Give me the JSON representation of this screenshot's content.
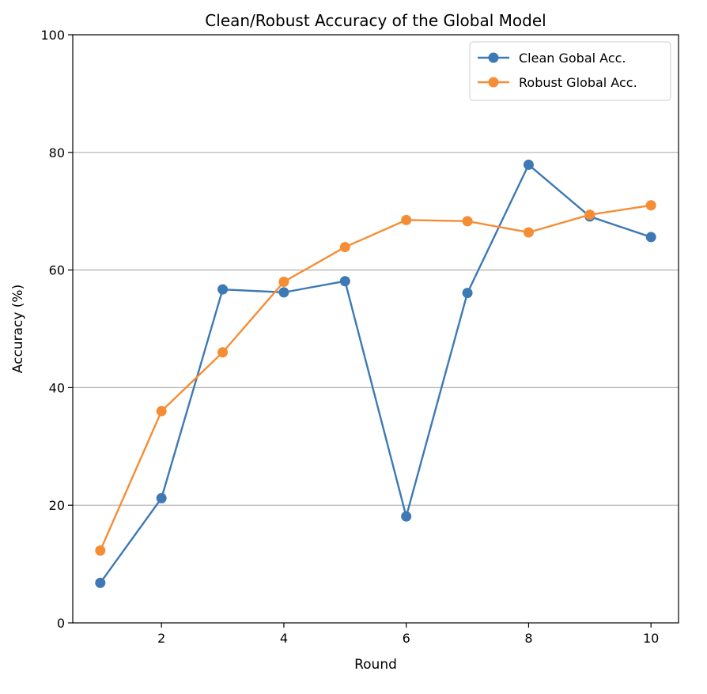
{
  "chart_data": {
    "type": "line",
    "title": "Clean/Robust Accuracy of the Global Model",
    "xlabel": "Round",
    "ylabel": "Accuracy (%)",
    "x": [
      1,
      2,
      3,
      4,
      5,
      6,
      7,
      8,
      9,
      10
    ],
    "xlim": [
      0.55,
      10.45
    ],
    "ylim": [
      0,
      100
    ],
    "xticks": [
      2,
      4,
      6,
      8,
      10
    ],
    "yticks": [
      0,
      20,
      40,
      60,
      80,
      100
    ],
    "grid": "horizontal",
    "legend_position": "top-right",
    "series": [
      {
        "name": "Clean Gobal Acc.",
        "color": "#3d79b5",
        "values": [
          6.8,
          21.2,
          56.7,
          56.2,
          58.1,
          18.1,
          56.1,
          77.9,
          69.1,
          65.6
        ]
      },
      {
        "name": "Robust Global Acc.",
        "color": "#f58d35",
        "values": [
          12.3,
          36.0,
          46.0,
          58.0,
          63.9,
          68.5,
          68.3,
          66.4,
          69.4,
          71.0
        ]
      }
    ]
  }
}
